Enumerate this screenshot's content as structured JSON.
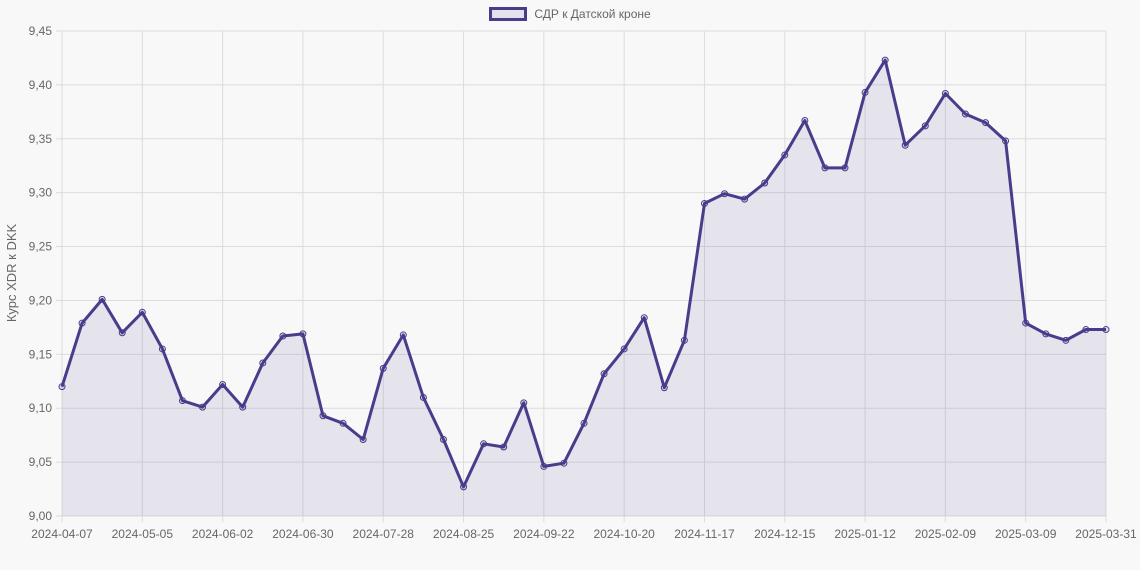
{
  "chart_data": {
    "type": "area",
    "title": "",
    "legend": [
      "СДР к Датской кроне"
    ],
    "legend_position": "top",
    "xlabel": "",
    "ylabel": "Курс XDR к DKK",
    "ylim": [
      9.0,
      9.45
    ],
    "yticks": [
      "9,00",
      "9,05",
      "9,10",
      "9,15",
      "9,20",
      "9,25",
      "9,30",
      "9,35",
      "9,40",
      "9,45"
    ],
    "xtick_labels": [
      "2024-04-07",
      "2024-05-05",
      "2024-06-02",
      "2024-06-30",
      "2024-07-28",
      "2024-08-25",
      "2024-09-22",
      "2024-10-20",
      "2024-11-17",
      "2024-12-15",
      "2025-01-12",
      "2025-02-09",
      "2025-03-09",
      "2025-03-31"
    ],
    "grid": true,
    "colors": {
      "line": "#483d8b",
      "fill": "rgba(72,61,139,0.1)",
      "background": "#f8f8f8",
      "grid": "#dcdcdc"
    },
    "series": [
      {
        "name": "СДР к Датской кроне",
        "values": [
          9.12,
          9.179,
          9.201,
          9.17,
          9.189,
          9.155,
          9.107,
          9.101,
          9.122,
          9.101,
          9.142,
          9.167,
          9.169,
          9.093,
          9.086,
          9.071,
          9.137,
          9.168,
          9.11,
          9.071,
          9.027,
          9.067,
          9.064,
          9.105,
          9.046,
          9.049,
          9.086,
          9.132,
          9.155,
          9.184,
          9.119,
          9.163,
          9.29,
          9.299,
          9.294,
          9.309,
          9.335,
          9.367,
          9.323,
          9.323,
          9.393,
          9.423,
          9.344,
          9.362,
          9.392,
          9.373,
          9.365,
          9.348,
          9.179,
          9.169,
          9.163,
          9.173,
          9.173
        ]
      }
    ]
  },
  "legend": {
    "label": "СДР к Датской кроне"
  },
  "axis": {
    "ylabel": "Курс XDR к DKK"
  }
}
